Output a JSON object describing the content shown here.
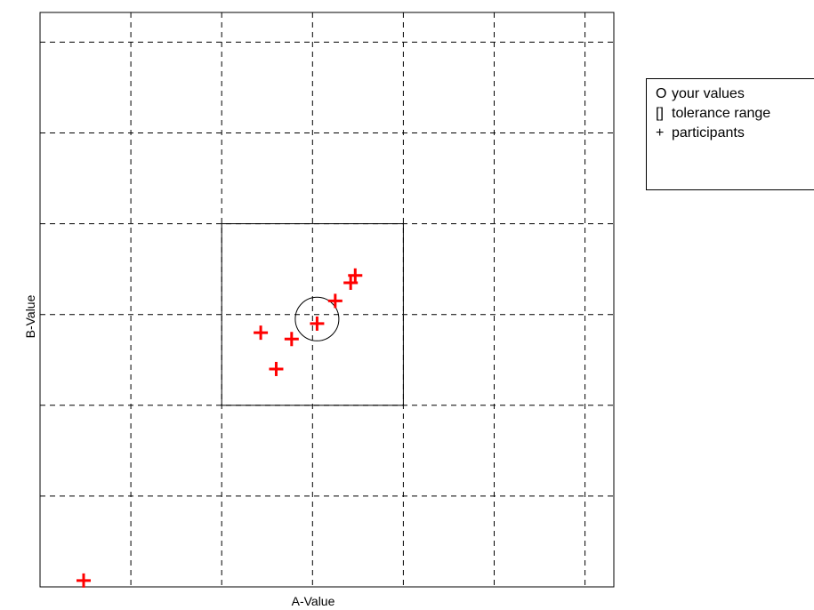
{
  "chart_data": {
    "type": "scatter",
    "title": "",
    "xlabel": "A-Value",
    "ylabel": "B-Value",
    "xlim": [
      0,
      6.3
    ],
    "ylim": [
      0,
      6.3
    ],
    "grid": true,
    "legend_placement": "right",
    "your_values": {
      "x": 3.05,
      "y": 2.95,
      "radius": 0.24
    },
    "tolerance_range": {
      "x": [
        2.0,
        4.0
      ],
      "y": [
        2.0,
        4.0
      ]
    },
    "participants": [
      {
        "x": 3.05,
        "y": 2.9
      },
      {
        "x": 3.25,
        "y": 3.15
      },
      {
        "x": 3.42,
        "y": 3.35
      },
      {
        "x": 3.47,
        "y": 3.43
      },
      {
        "x": 2.43,
        "y": 2.8
      },
      {
        "x": 2.77,
        "y": 2.73
      },
      {
        "x": 2.6,
        "y": 2.4
      },
      {
        "x": 0.48,
        "y": 0.07
      }
    ],
    "colors": {
      "participants": "#ff0000",
      "lines": "#000000"
    }
  },
  "legend": {
    "items": [
      {
        "symbol": "O",
        "label": "your values"
      },
      {
        "symbol": "[]",
        "label": "tolerance range"
      },
      {
        "symbol": "+",
        "label": "participants"
      }
    ]
  }
}
